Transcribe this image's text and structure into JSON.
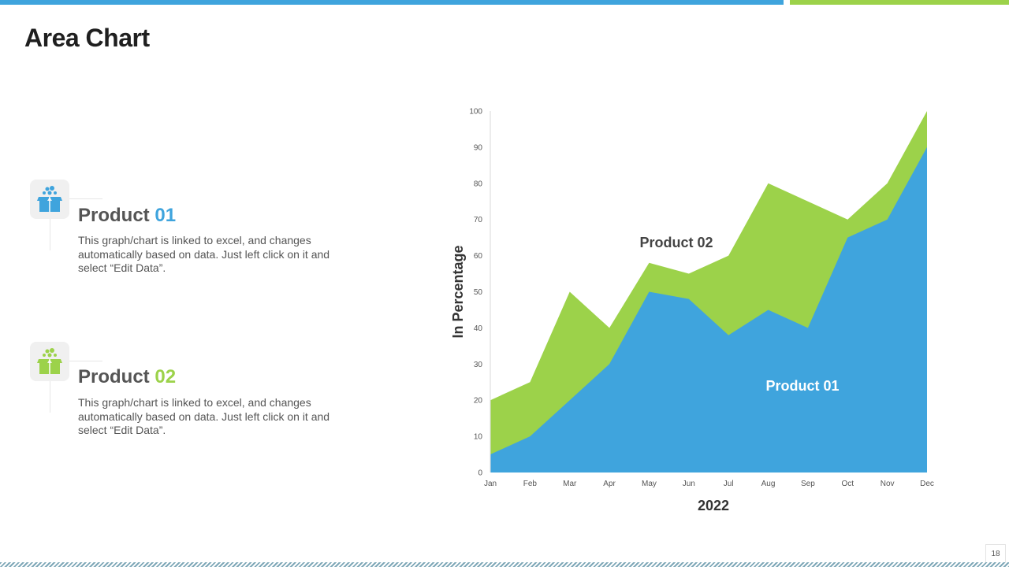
{
  "slide_title": "Area Chart",
  "page_number": "18",
  "products": [
    {
      "name": "Product ",
      "number": "01",
      "description": "This graph/chart is linked to excel, and changes automatically based on data. Just left click on it and select “Edit Data”.",
      "icon": "box-icon",
      "color": "#3fa4dd"
    },
    {
      "name": "Product ",
      "number": "02",
      "description": "This graph/chart is linked to excel, and changes automatically based on data. Just left click on it and select “Edit Data”.",
      "icon": "box-icon",
      "color": "#9cd24a"
    }
  ],
  "colors": {
    "blue": "#3fa4dd",
    "green": "#9cd24a"
  },
  "chart_data": {
    "type": "area",
    "categories": [
      "Jan",
      "Feb",
      "Mar",
      "Apr",
      "May",
      "Jun",
      "Jul",
      "Aug",
      "Sep",
      "Oct",
      "Nov",
      "Dec"
    ],
    "series": [
      {
        "name": "Product 02",
        "label": "Product 02",
        "values": [
          20,
          25,
          50,
          40,
          58,
          55,
          60,
          80,
          75,
          70,
          80,
          100
        ],
        "color": "#9cd24a"
      },
      {
        "name": "Product 01",
        "label": "Product 01",
        "values": [
          5,
          10,
          20,
          30,
          50,
          48,
          38,
          45,
          40,
          65,
          70,
          90
        ],
        "color": "#3fa4dd"
      }
    ],
    "title": "",
    "xlabel": "2022",
    "ylabel": "In Percentage",
    "ylim": [
      0,
      100
    ],
    "yticks": [
      0,
      10,
      20,
      30,
      40,
      50,
      60,
      70,
      80,
      90,
      100
    ],
    "grid": false
  }
}
